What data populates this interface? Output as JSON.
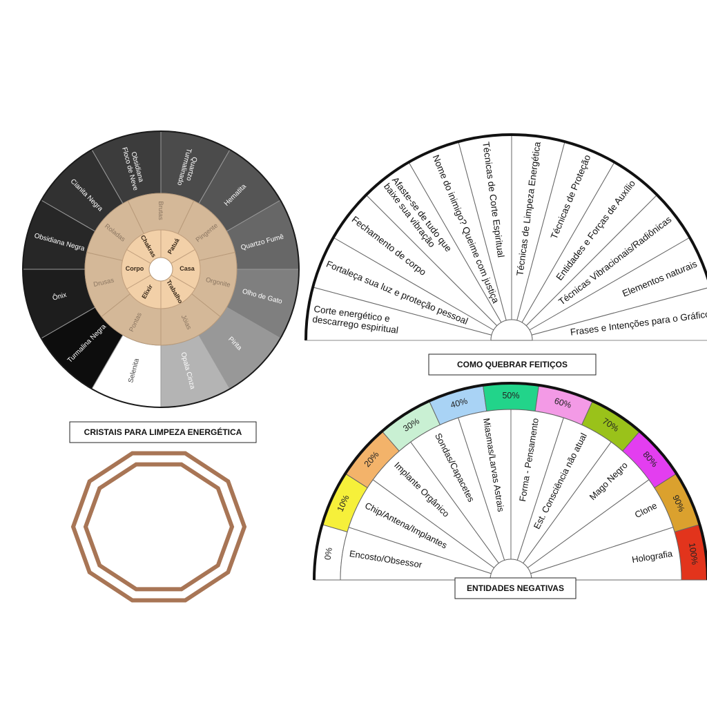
{
  "crystal_wheel": {
    "title": "CRISTAIS PARA LIMPEZA ENERGÉTICA",
    "outer": [
      [
        "Quartzo",
        "Turmalinado"
      ],
      [
        "Hematita"
      ],
      [
        "Quartzo Fumê"
      ],
      [
        "Olho de Gato"
      ],
      [
        "Pirita"
      ],
      [
        "Opala Cinza"
      ],
      [
        "Selenita"
      ],
      [
        "Turmalina Negra"
      ],
      [
        "Ônix"
      ],
      [
        "Obsidiana Negra"
      ],
      [
        "Cianita Negra"
      ],
      [
        "Obsidiana",
        "Floco de Neve"
      ]
    ],
    "middle": [
      "Brutas",
      "Pingente",
      "Orgonite",
      "Jóias",
      "Pontas",
      "Drusas",
      "Roladas"
    ],
    "inner": [
      "Patuá",
      "Casa",
      "Trabalho",
      "Elixir",
      "Corpo",
      "Chakras"
    ]
  },
  "spells_chart": {
    "title": "COMO QUEBRAR FEITIÇOS",
    "sectors": [
      [
        "Corte energético e",
        "descarrego espiritual"
      ],
      [
        "Fortaleça sua luz e proteção pessoal"
      ],
      [
        "Fechamento de corpo"
      ],
      [
        "Afaste-se de tudo que",
        "baixe sua vibração"
      ],
      [
        "Nome do inimigo? Queime com justiça"
      ],
      [
        "Técnicas de Corte Espiritual"
      ],
      [
        "Técnicas de Limpeza Energética"
      ],
      [
        "Técnicas de Proteção"
      ],
      [
        "Entidades e Forças de Auxílio"
      ],
      [
        "Técnicas Vibracionais/Radiônicas"
      ],
      [
        "Elementos naturais"
      ],
      [
        "Frases e Intenções para o Gráfico"
      ]
    ]
  },
  "entities_chart": {
    "title": "ENTIDADES NEGATIVAS",
    "percentages": [
      "0%",
      "10%",
      "20%",
      "30%",
      "40%",
      "50%",
      "60%",
      "70%",
      "80%",
      "90%",
      "100%"
    ],
    "sectors": [
      "Encosto/Obsessor",
      "Chip/Antena/Implantes",
      "Implante Orgânico",
      "Sondas/Capacetes",
      "Miasmas/Larvas Astrais",
      "Forma -  Pensamento",
      "Est. Consciência não atual",
      "Mago Negro",
      "Clone",
      "Holografia"
    ]
  }
}
